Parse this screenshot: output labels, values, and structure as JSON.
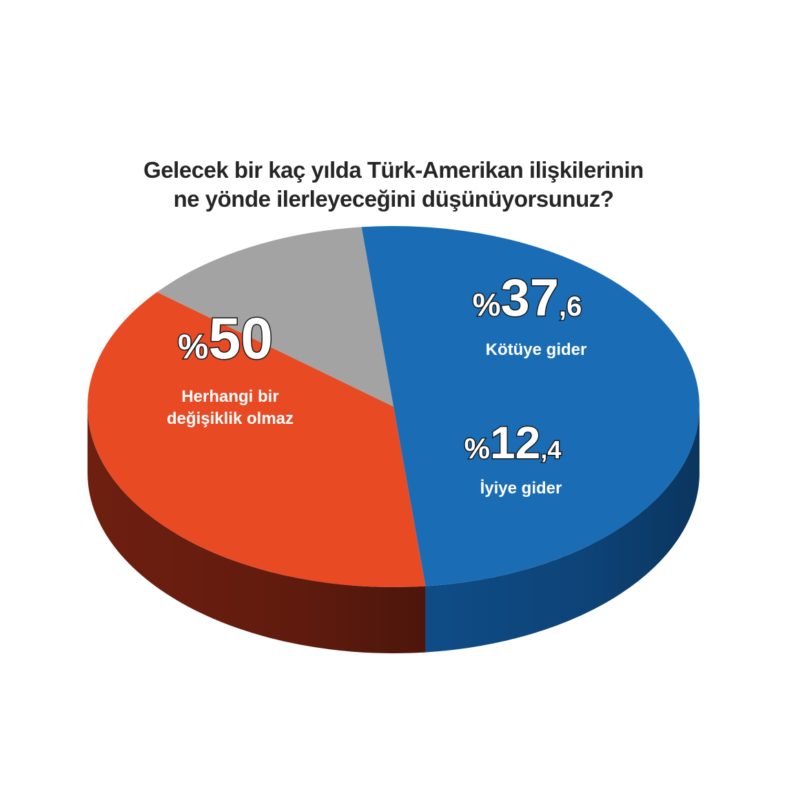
{
  "chart_data": {
    "type": "pie",
    "title_lines": [
      "Gelecek bir kaç yılda Türk-Amerikan ilişkilerinin",
      "ne yönde ilerleyeceğini düşünüyorsunuz?"
    ],
    "slices": [
      {
        "name": "Herhangi bir değişiklik olmaz",
        "label_lines": [
          "Herhangi bir",
          "değişiklik olmaz"
        ],
        "value": 50,
        "pct_sign": "%",
        "pct_main": "50",
        "pct_dec": "",
        "color": "#1a6db5",
        "side_color": "#0f4c87"
      },
      {
        "name": "Kötüye gider",
        "label_lines": [
          "Kötüye gider"
        ],
        "value": 37.6,
        "pct_sign": "%",
        "pct_main": "37",
        "pct_dec": ",6",
        "color": "#e84a24",
        "side_color": "#6e1f10"
      },
      {
        "name": "İyiye gider",
        "label_lines": [
          "İyiye gider"
        ],
        "value": 12.4,
        "pct_sign": "%",
        "pct_main": "12",
        "pct_dec": ",4",
        "color": "#a3a3a3",
        "side_color": "#454545"
      }
    ]
  }
}
